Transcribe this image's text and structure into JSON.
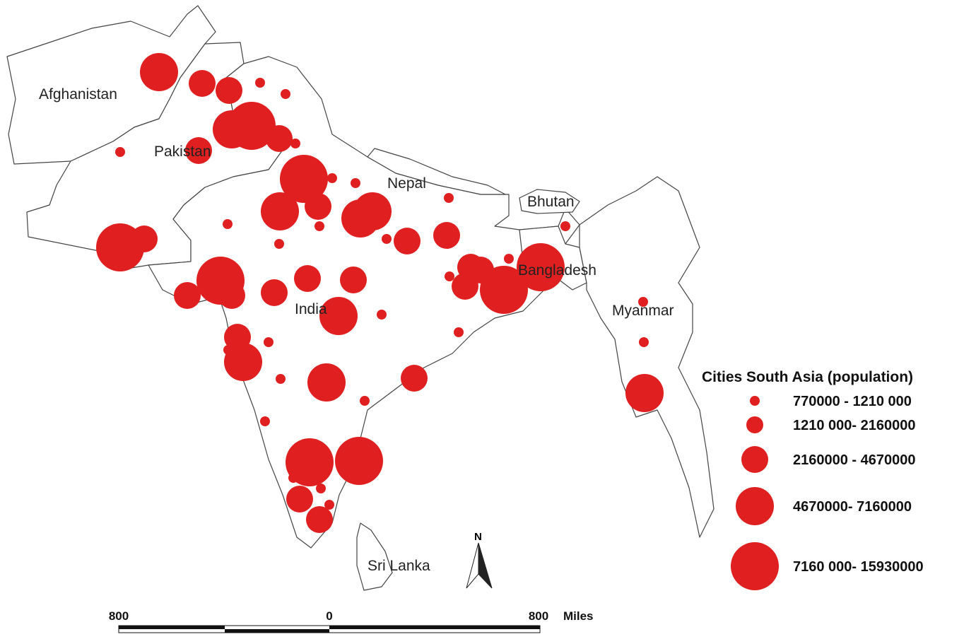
{
  "countries": [
    "Afghanistan",
    "Pakistan",
    "Nepal",
    "Bhutan",
    "Bangladesh",
    "India",
    "Myanmar",
    "Sri Lanka"
  ],
  "legend": {
    "title": "Cities South Asia (population)",
    "classes": [
      "770000 - 1210 000",
      "1210 000- 2160000",
      "2160000 - 4670000",
      "4670000- 7160000",
      "7160 000- 15930000"
    ]
  },
  "scale_bar": {
    "labels": [
      800,
      0,
      800
    ],
    "unit": "Miles"
  },
  "north_arrow": "N"
}
